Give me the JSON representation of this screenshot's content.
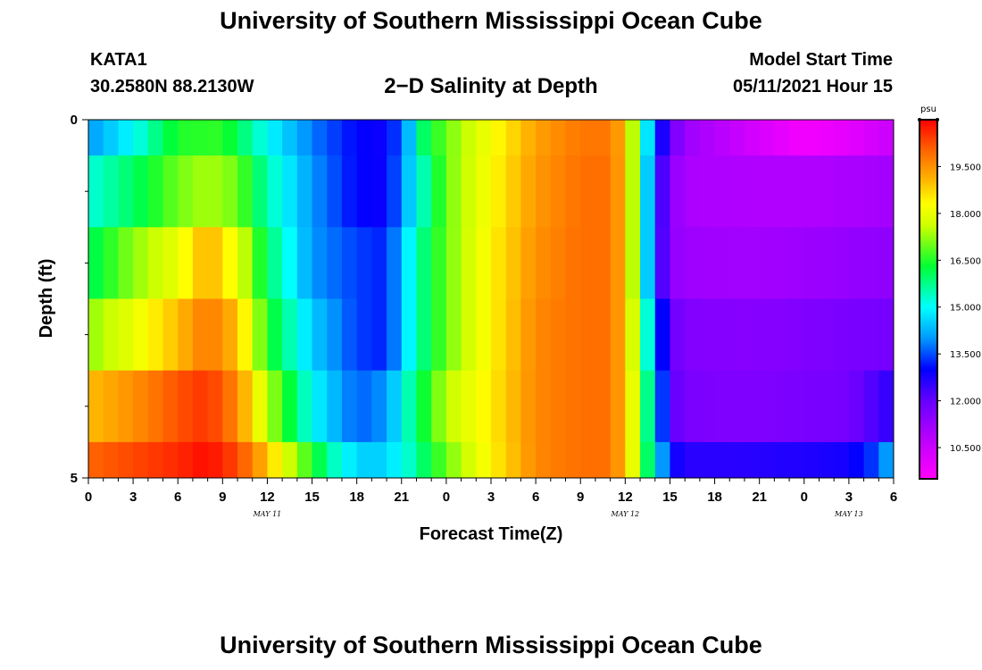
{
  "header": {
    "title": "University of Southern Mississippi Ocean Cube",
    "station_id": "KATA1",
    "coordinates": "30.2580N  88.2130W",
    "plot_title": "2−D Salinity at Depth",
    "model_start_label": "Model Start Time",
    "model_start_value": "05/11/2021 Hour 15"
  },
  "footer": {
    "title": "University of Southern Mississippi Ocean Cube"
  },
  "chart_data": {
    "type": "heatmap",
    "title": "2−D Salinity at Depth",
    "xlabel": "Forecast Time(Z)",
    "ylabel": "Depth (ft)",
    "x_tick_labels": [
      "0",
      "3",
      "6",
      "9",
      "12",
      "15",
      "18",
      "21",
      "0",
      "3",
      "6",
      "9",
      "12",
      "15",
      "18",
      "21",
      "0",
      "3",
      "6"
    ],
    "x_range_hours": [
      0,
      54
    ],
    "date_labels": [
      {
        "label": "MAY 11",
        "hour": 12
      },
      {
        "label": "MAY 12",
        "hour": 36
      },
      {
        "label": "MAY 13",
        "hour": 51
      }
    ],
    "y_tick_labels": [
      {
        "label": "0",
        "depth": 0
      },
      {
        "label": "5",
        "depth": 5
      }
    ],
    "y_range_ft": [
      0,
      5
    ],
    "colorbar": {
      "unit": "psu",
      "min": 9.5,
      "max": 21,
      "tick_labels": [
        "19.500",
        "18.000",
        "16.500",
        "15.000",
        "13.500",
        "12.000",
        "10.500"
      ],
      "tick_values": [
        19.5,
        18,
        16.5,
        15,
        13.5,
        12,
        10.5
      ],
      "stops": [
        {
          "v": 9.5,
          "color": "#ff00ff"
        },
        {
          "v": 10.5,
          "color": "#cc00ff"
        },
        {
          "v": 12.0,
          "color": "#6600ff"
        },
        {
          "v": 13.0,
          "color": "#0000ff"
        },
        {
          "v": 14.0,
          "color": "#0099ff"
        },
        {
          "v": 15.0,
          "color": "#00ffff"
        },
        {
          "v": 16.3,
          "color": "#00ff33"
        },
        {
          "v": 17.6,
          "color": "#ccff00"
        },
        {
          "v": 18.3,
          "color": "#ffff00"
        },
        {
          "v": 19.2,
          "color": "#ffaa00"
        },
        {
          "v": 20.0,
          "color": "#ff6600"
        },
        {
          "v": 21.0,
          "color": "#ff0000"
        }
      ]
    },
    "row_bounds_ft": [
      0,
      0.5,
      1.5,
      2.5,
      3.5,
      4.5,
      5.0
    ],
    "rows": [
      {
        "depth_range": [
          0,
          0.5
        ],
        "hours": [
          0,
          3,
          6,
          9,
          12,
          15,
          18,
          19.5,
          21,
          22.5,
          24,
          27,
          30,
          33,
          35,
          36,
          37,
          38,
          39,
          40,
          44,
          48,
          51,
          54
        ],
        "values": [
          14.0,
          15.0,
          16.5,
          16.6,
          15.0,
          13.8,
          13.0,
          12.9,
          13.5,
          16.0,
          17.0,
          18.2,
          19.3,
          19.8,
          19.8,
          19.0,
          16.0,
          13.5,
          12.0,
          11.2,
          10.5,
          9.7,
          10.0,
          10.6
        ]
      },
      {
        "depth_range": [
          0.5,
          1.5
        ],
        "hours": [
          0,
          3,
          6,
          8,
          10,
          12,
          15,
          18,
          20,
          22,
          24,
          27,
          30,
          33,
          35,
          36,
          37,
          38,
          39,
          40,
          44,
          48,
          51,
          54
        ],
        "values": [
          15.2,
          16.0,
          17.0,
          17.4,
          17.0,
          15.5,
          14.0,
          13.0,
          12.9,
          15.0,
          17.0,
          18.3,
          19.4,
          19.9,
          19.9,
          19.0,
          16.0,
          13.0,
          11.5,
          11.0,
          10.9,
          10.9,
          11.0,
          11.1
        ]
      },
      {
        "depth_range": [
          1.5,
          2.5
        ],
        "hours": [
          0,
          3,
          6,
          8,
          10,
          12,
          15,
          18,
          20,
          22,
          24,
          27,
          30,
          33,
          35,
          36,
          37,
          38,
          39,
          40,
          44,
          48,
          51,
          54
        ],
        "values": [
          16.0,
          17.2,
          18.0,
          19.2,
          18.0,
          16.0,
          14.0,
          13.4,
          13.2,
          15.5,
          17.0,
          18.4,
          19.5,
          19.9,
          19.9,
          19.0,
          16.0,
          13.0,
          11.4,
          11.2,
          11.1,
          11.2,
          11.3,
          11.4
        ]
      },
      {
        "depth_range": [
          2.5,
          3.5
        ],
        "hours": [
          0,
          3,
          6,
          8,
          10,
          12,
          15,
          18,
          20,
          22,
          24,
          27,
          30,
          33,
          35,
          36,
          37,
          38,
          39,
          40,
          44,
          48,
          51,
          54
        ],
        "values": [
          17.2,
          18.0,
          19.0,
          19.8,
          19.0,
          16.5,
          14.5,
          13.4,
          13.2,
          15.5,
          17.0,
          18.4,
          19.6,
          19.9,
          19.9,
          19.0,
          16.5,
          14.0,
          12.0,
          11.6,
          11.5,
          11.6,
          11.7,
          11.8
        ]
      },
      {
        "depth_range": [
          3.5,
          4.5
        ],
        "hours": [
          0,
          3,
          6,
          8,
          10,
          12,
          15,
          18,
          20,
          22,
          24,
          27,
          30,
          33,
          35,
          36,
          37,
          38,
          39,
          40,
          44,
          48,
          51,
          54
        ],
        "values": [
          19.0,
          19.5,
          20.2,
          20.5,
          19.6,
          17.5,
          15.0,
          13.6,
          14.0,
          16.0,
          17.5,
          18.5,
          19.6,
          19.9,
          19.9,
          19.0,
          17.0,
          14.5,
          12.2,
          11.7,
          11.6,
          11.7,
          11.8,
          12.6
        ]
      },
      {
        "depth_range": [
          4.5,
          5.0
        ],
        "hours": [
          0,
          3,
          6,
          8,
          10,
          12,
          13,
          15,
          17,
          19,
          21,
          24,
          27,
          30,
          33,
          35,
          36,
          37,
          38,
          39,
          40,
          44,
          48,
          51,
          53,
          54
        ],
        "values": [
          20.0,
          20.3,
          20.6,
          20.9,
          20.3,
          19.0,
          18.0,
          16.5,
          15.0,
          14.4,
          15.0,
          17.0,
          18.4,
          19.6,
          19.9,
          19.9,
          19.0,
          17.0,
          15.0,
          13.0,
          12.6,
          12.6,
          12.7,
          12.8,
          13.5,
          14.5
        ]
      }
    ]
  }
}
